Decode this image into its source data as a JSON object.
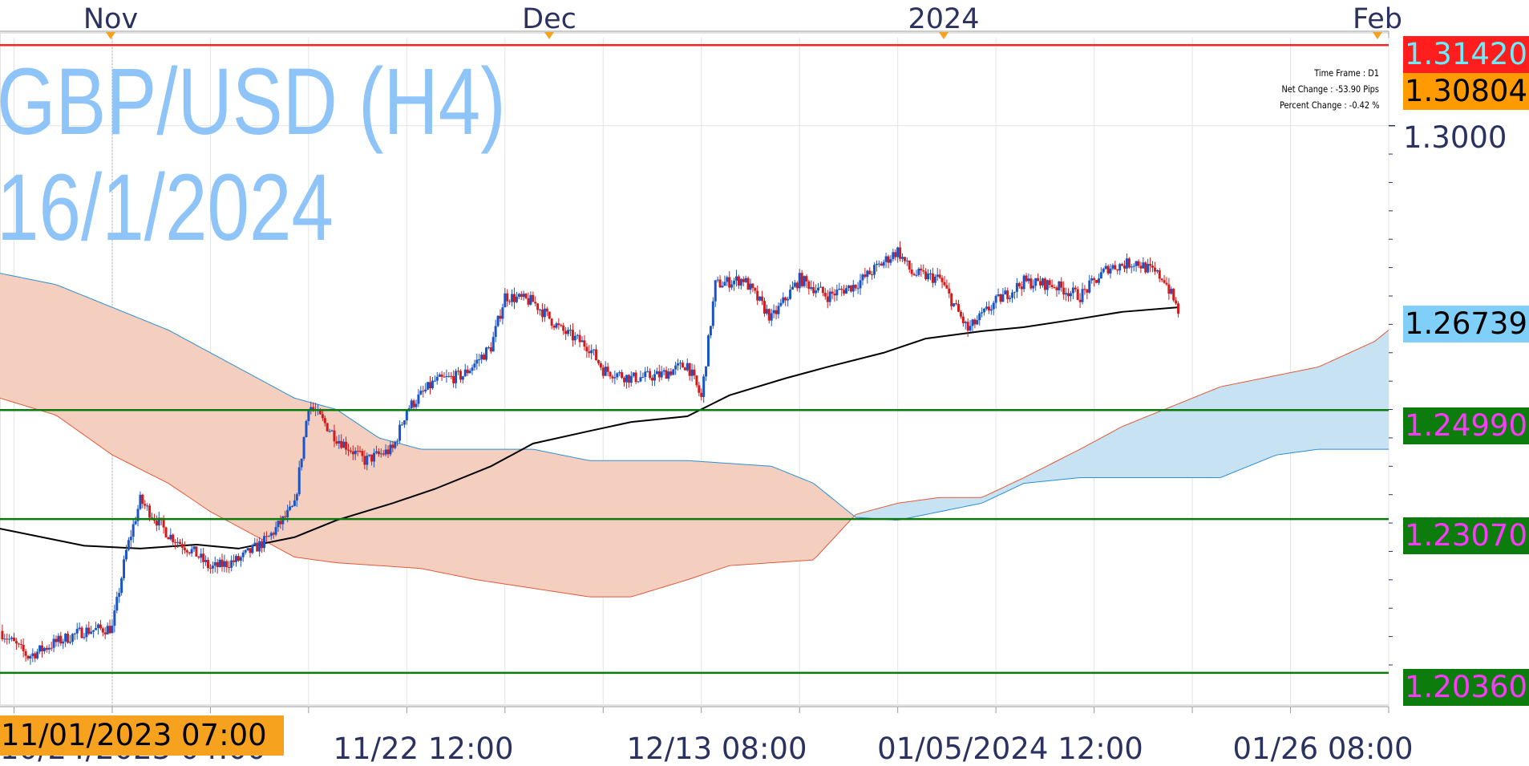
{
  "watermark": {
    "line1": "GBP/USD (H4)",
    "line2": "16/1/2024"
  },
  "info_box": {
    "timeframe": "Time Frame : D1",
    "net_change": "Net Change : -53.90 Pips",
    "percent_change": "Percent Change : -0.42 %"
  },
  "x_axis": {
    "months": [
      "Nov",
      "Dec",
      "2024",
      "Feb"
    ],
    "date_labels": [
      "11/22 12:00",
      "12/13 08:00",
      "01/05/2024 12:00",
      "01/26 08:00"
    ],
    "cursor_label": "11/01/2023 07:00",
    "cursor_label_behind": "10/24/2023 04:00"
  },
  "price_tags": [
    {
      "text": "1.31420",
      "bg": "#ff1d1d",
      "fg": "#66f0ff"
    },
    {
      "text": "1.30804",
      "bg": "#ff9a00",
      "fg": "#000000"
    },
    {
      "text": "1.26739",
      "bg": "#7fcff8",
      "fg": "#000000"
    },
    {
      "text": "1.24990",
      "bg": "#0c7d0c",
      "fg": "#ff38ff"
    },
    {
      "text": "1.23070",
      "bg": "#0c7d0c",
      "fg": "#ff38ff"
    },
    {
      "text": "1.20360",
      "bg": "#0c7d0c",
      "fg": "#ff38ff"
    }
  ],
  "price_label": "1.3000",
  "colors": {
    "bull": "#1a55c8",
    "bear": "#d41a1a",
    "ma": "#000000",
    "cloud_bear": "#f4cfc0",
    "cloud_bull": "#c6e2f3",
    "support": "#0b7a0b",
    "resistance": "#ff2020",
    "axis_text": "#2c3260"
  },
  "chart_data": {
    "type": "candlestick",
    "symbol": "GBP/USD",
    "timeframe": "H4",
    "x_range": [
      "2023-10-24",
      "2024-01-31"
    ],
    "y_range": [
      1.1985,
      1.3155
    ],
    "price": {
      "last": 1.26739,
      "x": [
        "2023-10-24",
        "2023-10-26",
        "2023-10-28",
        "2023-10-30",
        "2023-11-01",
        "2023-11-02",
        "2023-11-03",
        "2023-11-05",
        "2023-11-07",
        "2023-11-08",
        "2023-11-10",
        "2023-11-12",
        "2023-11-14",
        "2023-11-15",
        "2023-11-17",
        "2023-11-19",
        "2023-11-21",
        "2023-11-22",
        "2023-11-24",
        "2023-11-26",
        "2023-11-28",
        "2023-11-29",
        "2023-12-01",
        "2023-12-03",
        "2023-12-05",
        "2023-12-06",
        "2023-12-08",
        "2023-12-10",
        "2023-12-12",
        "2023-12-13",
        "2023-12-14",
        "2023-12-16",
        "2023-12-18",
        "2023-12-20",
        "2023-12-22",
        "2023-12-24",
        "2023-12-27",
        "2023-12-28",
        "2023-12-30",
        "2024-01-01",
        "2024-01-03",
        "2024-01-05",
        "2024-01-07",
        "2024-01-09",
        "2024-01-11",
        "2024-01-13",
        "2024-01-15",
        "2024-01-16"
      ],
      "y": [
        1.211,
        1.2065,
        1.209,
        1.211,
        1.2115,
        1.225,
        1.234,
        1.228,
        1.2245,
        1.222,
        1.2235,
        1.227,
        1.233,
        1.251,
        1.245,
        1.241,
        1.243,
        1.25,
        1.255,
        1.256,
        1.261,
        1.27,
        1.269,
        1.264,
        1.261,
        1.257,
        1.2555,
        1.256,
        1.258,
        1.252,
        1.272,
        1.273,
        1.266,
        1.273,
        1.27,
        1.272,
        1.278,
        1.274,
        1.273,
        1.264,
        1.269,
        1.2725,
        1.272,
        1.27,
        1.275,
        1.276,
        1.273,
        1.2674
      ]
    },
    "moving_average": {
      "x": [
        "2023-10-24",
        "2023-10-30",
        "2023-11-03",
        "2023-11-07",
        "2023-11-10",
        "2023-11-14",
        "2023-11-17",
        "2023-11-21",
        "2023-11-24",
        "2023-11-28",
        "2023-12-01",
        "2023-12-05",
        "2023-12-08",
        "2023-12-12",
        "2023-12-15",
        "2023-12-19",
        "2023-12-22",
        "2023-12-26",
        "2023-12-29",
        "2024-01-02",
        "2024-01-05",
        "2024-01-09",
        "2024-01-12",
        "2024-01-16"
      ],
      "y": [
        1.229,
        1.226,
        1.2255,
        1.2262,
        1.2255,
        1.2275,
        1.2305,
        1.2335,
        1.236,
        1.24,
        1.244,
        1.2462,
        1.2478,
        1.2488,
        1.2525,
        1.2555,
        1.2575,
        1.26,
        1.2625,
        1.2638,
        1.2645,
        1.266,
        1.2672,
        1.268
      ]
    },
    "cloud": {
      "x": [
        "2023-10-21",
        "2023-10-24",
        "2023-10-28",
        "2023-11-01",
        "2023-11-05",
        "2023-11-08",
        "2023-11-11",
        "2023-11-14",
        "2023-11-17",
        "2023-11-20",
        "2023-11-23",
        "2023-11-27",
        "2023-12-01",
        "2023-12-05",
        "2023-12-08",
        "2023-12-12",
        "2023-12-15",
        "2023-12-18",
        "2023-12-21",
        "2023-12-24",
        "2023-12-27",
        "2023-12-30",
        "2024-01-02",
        "2024-01-05",
        "2024-01-09",
        "2024-01-12",
        "2024-01-16",
        "2024-01-19",
        "2024-01-23",
        "2024-01-26",
        "2024-01-30",
        "2024-01-31"
      ],
      "span_a": [
        1.256,
        1.252,
        1.249,
        1.242,
        1.237,
        1.232,
        1.228,
        1.224,
        1.223,
        1.2225,
        1.222,
        1.22,
        1.2185,
        1.217,
        1.217,
        1.22,
        1.2225,
        1.223,
        1.2235,
        1.2315,
        1.2335,
        1.2345,
        1.2345,
        1.238,
        1.243,
        1.247,
        1.251,
        1.254,
        1.256,
        1.2575,
        1.262,
        1.264
      ],
      "span_b": [
        1.275,
        1.274,
        1.272,
        1.268,
        1.264,
        1.26,
        1.256,
        1.252,
        1.25,
        1.245,
        1.243,
        1.243,
        1.243,
        1.241,
        1.241,
        1.241,
        1.2405,
        1.24,
        1.237,
        1.231,
        1.2305,
        1.232,
        1.2335,
        1.237,
        1.238,
        1.238,
        1.238,
        1.238,
        1.242,
        1.243,
        1.243,
        1.243
      ]
    },
    "horizontal_lines": [
      {
        "price": 1.3142,
        "kind": "resistance"
      },
      {
        "price": 1.2499,
        "kind": "support"
      },
      {
        "price": 1.2307,
        "kind": "support"
      },
      {
        "price": 1.2036,
        "kind": "support"
      }
    ],
    "y_tick_labels": [
      "1.3000"
    ],
    "grid": true
  }
}
